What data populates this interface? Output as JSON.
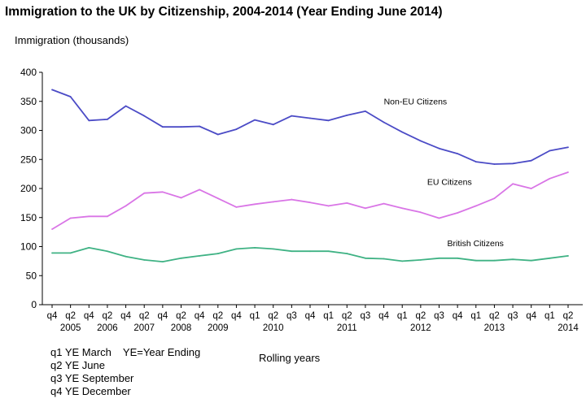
{
  "chart_data": {
    "type": "line",
    "title": "Immigration to the UK by Citizenship, 2004-2014 (Year Ending June 2014)",
    "ylabel": "Immigration (thousands)",
    "xlabel": "Rolling years",
    "ylim": [
      0,
      400
    ],
    "yticks": [
      0,
      50,
      100,
      150,
      200,
      250,
      300,
      350,
      400
    ],
    "grid": false,
    "x": [
      "2004 q4",
      "2005 q2",
      "2005 q4",
      "2006 q2",
      "2006 q4",
      "2007 q2",
      "2007 q4",
      "2008 q2",
      "2008 q4",
      "2009 q2",
      "2009 q4",
      "2010 q1",
      "2010 q2",
      "2010 q3",
      "2010 q4",
      "2011 q1",
      "2011 q2",
      "2011 q3",
      "2011 q4",
      "2012 q1",
      "2012 q2",
      "2012 q3",
      "2012 q4",
      "2013 q1",
      "2013 q2",
      "2013 q3",
      "2013 q4",
      "2014 q1",
      "2014 q2"
    ],
    "tick_labels": [
      "q4",
      "q2",
      "q4",
      "q2",
      "q4",
      "q2",
      "q4",
      "q2",
      "q4",
      "q2",
      "q4",
      "q1",
      "q2",
      "q3",
      "q4",
      "q1",
      "q2",
      "q3",
      "q4",
      "q1",
      "q2",
      "q3",
      "q4",
      "q1",
      "q2",
      "q3",
      "q4",
      "q1",
      "q2"
    ],
    "year_labels": [
      {
        "label": "2005",
        "index": 1
      },
      {
        "label": "2006",
        "index": 3
      },
      {
        "label": "2007",
        "index": 5
      },
      {
        "label": "2008",
        "index": 7
      },
      {
        "label": "2009",
        "index": 9
      },
      {
        "label": "2010",
        "index": 12
      },
      {
        "label": "2011",
        "index": 16
      },
      {
        "label": "2012",
        "index": 20
      },
      {
        "label": "2013",
        "index": 24
      },
      {
        "label": "2014",
        "index": 28
      }
    ],
    "series": [
      {
        "name": "Non-EU Citizens",
        "color": "#4b4bc6",
        "values": [
          370,
          358,
          317,
          319,
          342,
          325,
          306,
          306,
          307,
          293,
          302,
          318,
          310,
          325,
          321,
          317,
          326,
          333,
          314,
          297,
          282,
          269,
          260,
          246,
          242,
          243,
          248,
          265,
          271
        ],
        "label_at": 18
      },
      {
        "name": "EU Citizens",
        "color": "#d975e6",
        "values": [
          130,
          149,
          152,
          152,
          170,
          192,
          194,
          184,
          198,
          183,
          168,
          173,
          177,
          181,
          176,
          170,
          175,
          166,
          174,
          166,
          159,
          149,
          158,
          170,
          183,
          208,
          200,
          217,
          228
        ],
        "label_at": 20
      },
      {
        "name": "British Citizens",
        "color": "#3fb284",
        "values": [
          89,
          89,
          98,
          92,
          83,
          77,
          74,
          80,
          84,
          88,
          96,
          98,
          96,
          92,
          92,
          92,
          88,
          80,
          79,
          75,
          77,
          80,
          80,
          76,
          76,
          78,
          76,
          80,
          84
        ],
        "label_at": 21
      }
    ]
  },
  "notes": {
    "line1a": "q1 YE March",
    "line1b": "YE=Year Ending",
    "line2": "q2 YE June",
    "line3": "q3 YE September",
    "line4": "q4 YE December"
  }
}
